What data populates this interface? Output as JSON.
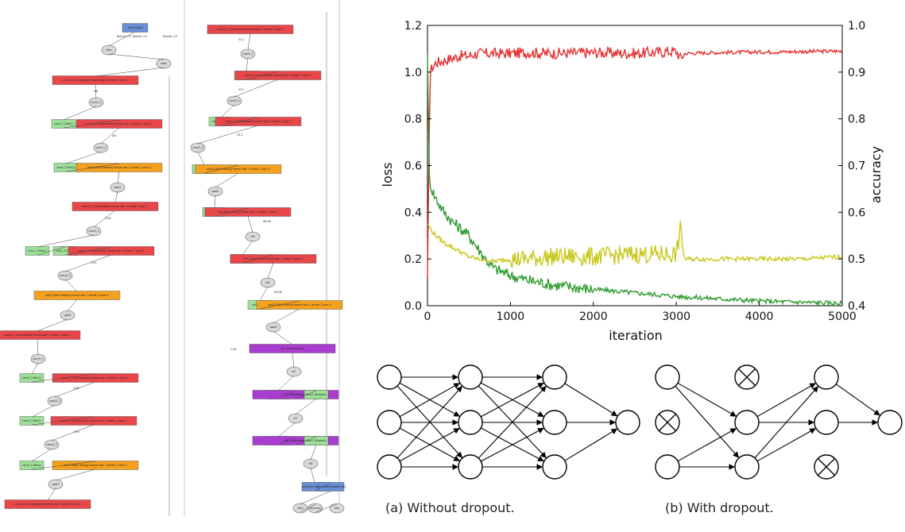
{
  "network_graph": {
    "column1": [
      {
        "label": "data (Data)",
        "kind": "data"
      },
      {
        "label": "data",
        "kind": "blob"
      },
      {
        "label": "label",
        "kind": "blob"
      },
      {
        "label": "conv1_1 (Convolution) kernel size: 3 stride: 1 pad: 1",
        "kind": "conv"
      },
      {
        "label": "conv1_1",
        "kind": "blob"
      },
      {
        "label": "relu1_1 (ReLU)",
        "kind": "relu"
      },
      {
        "label": "conv1_2 (Convolution) kernel size: 3 stride: 1 pad: 1",
        "kind": "conv"
      },
      {
        "label": "conv1_2",
        "kind": "blob"
      },
      {
        "label": "relu1_2 (ReLU)",
        "kind": "relu"
      },
      {
        "label": "pool1 (MAX Pooling) kernel size: 2 stride: 2 pad: 0",
        "kind": "pool"
      },
      {
        "label": "pool1",
        "kind": "blob"
      },
      {
        "label": "conv2_1 (Convolution) kernel size: 3 stride: 1 pad: 1",
        "kind": "conv"
      },
      {
        "label": "conv2_1",
        "kind": "blob"
      },
      {
        "label": "relu2_1 (ReLU)",
        "kind": "relu"
      },
      {
        "label": "relu2_2 (ReLU)",
        "kind": "relu"
      },
      {
        "label": "conv2_2 (Convolution) kernel size: 3 stride: 1 pad: 1",
        "kind": "conv"
      },
      {
        "label": "conv2_2",
        "kind": "blob"
      },
      {
        "label": "pool2 (MAX Pooling) kernel size: 2 stride: 2 pad: 0",
        "kind": "pool"
      },
      {
        "label": "pool2",
        "kind": "blob"
      },
      {
        "label": "conv3_1 (Convolution) kernel size: 3 stride: 1 pad: 1",
        "kind": "conv"
      },
      {
        "label": "conv3_1",
        "kind": "blob"
      },
      {
        "label": "relu3_1 (ReLU)",
        "kind": "relu"
      },
      {
        "label": "conv3_2 (Convolution) kernel size: 3 stride: 1 pad: 1",
        "kind": "conv"
      },
      {
        "label": "conv3_2",
        "kind": "blob"
      },
      {
        "label": "relu3_2 (ReLU)",
        "kind": "relu"
      },
      {
        "label": "conv3_3 (Convolution) kernel size: 3 stride: 1 pad: 1",
        "kind": "conv"
      },
      {
        "label": "conv3_3",
        "kind": "blob"
      },
      {
        "label": "relu3_3 (ReLU)",
        "kind": "relu"
      },
      {
        "label": "pool3 (MAX Pooling) kernel size: 2 stride: 2 pad: 0",
        "kind": "pool"
      },
      {
        "label": "pool3",
        "kind": "blob"
      },
      {
        "label": "conv4_1 (Convolution) kernel size: 3 stride: 1 pad: 1",
        "kind": "conv"
      }
    ],
    "column2": [
      {
        "label": "conv5_1 (Convolution) kernel size: 3 stride: 1 pad: 1",
        "kind": "conv"
      },
      {
        "label": "conv5_1",
        "kind": "blob"
      },
      {
        "label": "relu5_1 (ReLU)",
        "kind": "relu"
      },
      {
        "label": "conv5_2 (Convolution) kernel size: 3 stride: 1 pad: 1",
        "kind": "conv"
      },
      {
        "label": "conv5_2",
        "kind": "blob"
      },
      {
        "label": "relu5_2 (ReLU)",
        "kind": "relu"
      },
      {
        "label": "conv5_3 (Convolution) kernel size: 3 stride: 1 pad: 1",
        "kind": "conv"
      },
      {
        "label": "conv5_3",
        "kind": "blob"
      },
      {
        "label": "relu5_3 (ReLU)",
        "kind": "relu"
      },
      {
        "label": "pool5 (MAX Pooling) kernel size: 2 stride: 2 pad: 0",
        "kind": "pool"
      },
      {
        "label": "pool5",
        "kind": "blob"
      },
      {
        "label": "drop5 (Dropout)",
        "kind": "relu"
      },
      {
        "label": "fc6 (Convolution) kernel size: 7 stride: 1 pad: 0",
        "kind": "conv"
      },
      {
        "label": "fc6",
        "kind": "blob"
      },
      {
        "label": "relu6 (ReLU)",
        "kind": "relu"
      },
      {
        "label": "fc6 (Convolution) kernel size: 1 stride: 1 pad: 0",
        "kind": "conv"
      },
      {
        "label": "fc6",
        "kind": "blob"
      },
      {
        "label": "relu6 (ReLU)",
        "kind": "relu"
      },
      {
        "label": "pool5 (MAX Pooling) kernel size: 2 stride: 2 pad: 0",
        "kind": "pool"
      },
      {
        "label": "pool5",
        "kind": "blob"
      },
      {
        "label": "fc7 (InnerProduct)",
        "kind": "fc"
      },
      {
        "label": "fc7",
        "kind": "blob"
      },
      {
        "label": "relu7 (ReLU)",
        "kind": "relu"
      },
      {
        "label": "fc7 (InnerProduct)",
        "kind": "fc"
      },
      {
        "label": "drop7 (Dropout)",
        "kind": "relu"
      },
      {
        "label": "fc7",
        "kind": "blob"
      },
      {
        "label": "relu7 (ReLU)",
        "kind": "relu"
      },
      {
        "label": "fc8 (InnerProduct)",
        "kind": "fc"
      },
      {
        "label": "drop7 (Dropout)",
        "kind": "relu"
      },
      {
        "label": "fc8",
        "kind": "blob"
      },
      {
        "label": "accuracy (Accuracy)",
        "kind": "data"
      },
      {
        "label": "loss (SoftmaxWithLoss)",
        "kind": "data"
      },
      {
        "label": "data",
        "kind": "blob"
      },
      {
        "label": "accuracy",
        "kind": "blob"
      },
      {
        "label": "loss",
        "kind": "blob"
      }
    ],
    "edge_labels": [
      "Batch 25",
      "Batch 25",
      "Batch 25",
      "64",
      "64",
      "128",
      "128",
      "256",
      "256",
      "256",
      "512",
      "512",
      "512",
      "4096",
      "4096"
    ],
    "colors": {
      "data": "#6a8fd6",
      "conv": "#e8474a",
      "relu": "#9ee09a",
      "pool": "#f5a11e",
      "fc": "#a83dcf",
      "blob": "#d9d9d9"
    }
  },
  "chart_data": {
    "type": "line",
    "xlabel": "iteration",
    "ylabel": "loss",
    "y2label": "accuracy",
    "xlim": [
      0,
      5000
    ],
    "ylim": [
      0,
      1.2
    ],
    "y2lim": [
      0.4,
      1.0
    ],
    "xticks": [
      "0",
      "1000",
      "2000",
      "3000",
      "4000",
      "5000"
    ],
    "yticks": [
      "0.0",
      "0.2",
      "0.4",
      "0.6",
      "0.8",
      "1.0",
      "1.2"
    ],
    "y2ticks": [
      "0.4",
      "0.5",
      "0.6",
      "0.7",
      "0.8",
      "0.9",
      "1.0"
    ],
    "grid": false,
    "series": [
      {
        "axis": "right",
        "color": "#e62f2f",
        "x": [
          0,
          30,
          60,
          100,
          200,
          300,
          400,
          500,
          600,
          800,
          1000,
          1200,
          1500,
          2000,
          2500,
          3000,
          3050,
          3100,
          3500,
          4000,
          4500,
          5000
        ],
        "values": [
          0.45,
          0.9,
          0.91,
          0.92,
          0.925,
          0.93,
          0.935,
          0.935,
          0.94,
          0.94,
          0.94,
          0.942,
          0.94,
          0.942,
          0.94,
          0.945,
          0.93,
          0.94,
          0.942,
          0.943,
          0.944,
          0.945
        ]
      },
      {
        "axis": "left",
        "color": "#2f9a2f",
        "x": [
          0,
          20,
          50,
          100,
          200,
          300,
          400,
          500,
          600,
          700,
          800,
          1000,
          1200,
          1500,
          2000,
          2500,
          3000,
          3500,
          4000,
          4500,
          5000
        ],
        "values": [
          1.1,
          0.55,
          0.5,
          0.46,
          0.4,
          0.36,
          0.33,
          0.3,
          0.25,
          0.2,
          0.16,
          0.13,
          0.11,
          0.09,
          0.07,
          0.055,
          0.04,
          0.03,
          0.02,
          0.015,
          0.01
        ]
      },
      {
        "axis": "left",
        "color": "#c8c81e",
        "x": [
          0,
          50,
          100,
          200,
          300,
          400,
          500,
          600,
          800,
          1000,
          1200,
          1500,
          2000,
          2500,
          3000,
          3050,
          3100,
          3500,
          4000,
          4500,
          5000
        ],
        "values": [
          0.35,
          0.32,
          0.3,
          0.27,
          0.25,
          0.23,
          0.21,
          0.2,
          0.19,
          0.2,
          0.2,
          0.21,
          0.21,
          0.22,
          0.22,
          0.33,
          0.2,
          0.2,
          0.2,
          0.2,
          0.21
        ]
      }
    ]
  },
  "dropout": {
    "caption_a": "(a) Without dropout.",
    "caption_b": "(b) With dropout."
  }
}
